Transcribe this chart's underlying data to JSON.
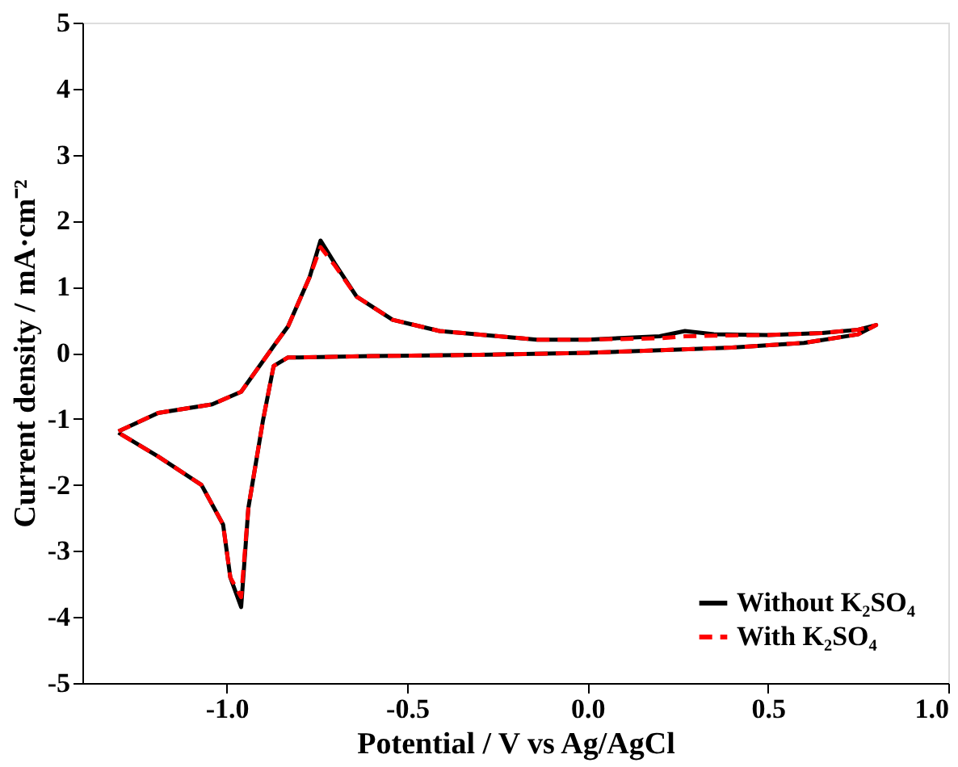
{
  "chart_data": {
    "type": "line",
    "xlabel": "Potential / V vs Ag/AgCl",
    "ylabel": "Current  density / mA·cm⁻²",
    "xlim": [
      -1.4,
      1.0
    ],
    "ylim": [
      -5,
      5
    ],
    "xticks": [
      {
        "value": -1,
        "label": "-1.0"
      },
      {
        "value": -0.5,
        "label": "-0.5"
      },
      {
        "value": 0,
        "label": "0.0"
      },
      {
        "value": 0.5,
        "label": "0.5"
      },
      {
        "value": 1,
        "label": "1.0"
      }
    ],
    "yticks": [
      -5,
      -4,
      -3,
      -2,
      -1,
      0,
      1,
      2,
      3,
      4,
      5
    ],
    "grid": false,
    "legend": "bottom right",
    "marker": "none",
    "series": [
      {
        "name": "Without K₂SO₄",
        "color": "#000000",
        "line_style": "solid",
        "x": [
          -1.3,
          -1.19,
          -1.04,
          -0.96,
          -0.87,
          -0.83,
          -0.77,
          -0.74,
          -0.7,
          -0.64,
          -0.54,
          -0.41,
          -0.14,
          0.0,
          0.2,
          0.27,
          0.35,
          0.5,
          0.65,
          0.75,
          0.8,
          0.75,
          0.6,
          0.4,
          0.25,
          0.0,
          -0.3,
          -0.6,
          -0.8,
          -0.83,
          -0.87,
          -0.9,
          -0.94,
          -0.96,
          -0.99,
          -1.01,
          -1.07,
          -1.19,
          -1.3
        ],
        "values": [
          -1.19,
          -0.91,
          -0.78,
          -0.59,
          0.1,
          0.4,
          1.15,
          1.7,
          1.35,
          0.85,
          0.5,
          0.33,
          0.2,
          0.2,
          0.25,
          0.33,
          0.28,
          0.27,
          0.3,
          0.35,
          0.42,
          0.28,
          0.15,
          0.08,
          0.05,
          0.0,
          -0.03,
          -0.05,
          -0.07,
          -0.07,
          -0.2,
          -1.04,
          -2.35,
          -3.85,
          -3.4,
          -2.6,
          -2.0,
          -1.57,
          -1.21
        ]
      },
      {
        "name": "With K₂SO₄",
        "color": "#ff0000",
        "line_style": "dashed",
        "x": [
          -1.3,
          -1.19,
          -1.04,
          -0.96,
          -0.87,
          -0.83,
          -0.77,
          -0.74,
          -0.7,
          -0.64,
          -0.54,
          -0.41,
          -0.14,
          0.0,
          0.2,
          0.27,
          0.35,
          0.5,
          0.65,
          0.75,
          0.8,
          0.75,
          0.6,
          0.4,
          0.25,
          0.0,
          -0.3,
          -0.6,
          -0.8,
          -0.83,
          -0.87,
          -0.9,
          -0.94,
          -0.96,
          -0.99,
          -1.01,
          -1.07,
          -1.19,
          -1.3
        ],
        "values": [
          -1.19,
          -0.91,
          -0.78,
          -0.59,
          0.1,
          0.4,
          1.15,
          1.6,
          1.32,
          0.85,
          0.5,
          0.33,
          0.2,
          0.2,
          0.22,
          0.25,
          0.26,
          0.27,
          0.3,
          0.35,
          0.42,
          0.28,
          0.15,
          0.08,
          0.05,
          0.0,
          -0.03,
          -0.05,
          -0.07,
          -0.07,
          -0.2,
          -1.04,
          -2.35,
          -3.7,
          -3.4,
          -2.6,
          -2.0,
          -1.57,
          -1.21
        ]
      }
    ]
  }
}
